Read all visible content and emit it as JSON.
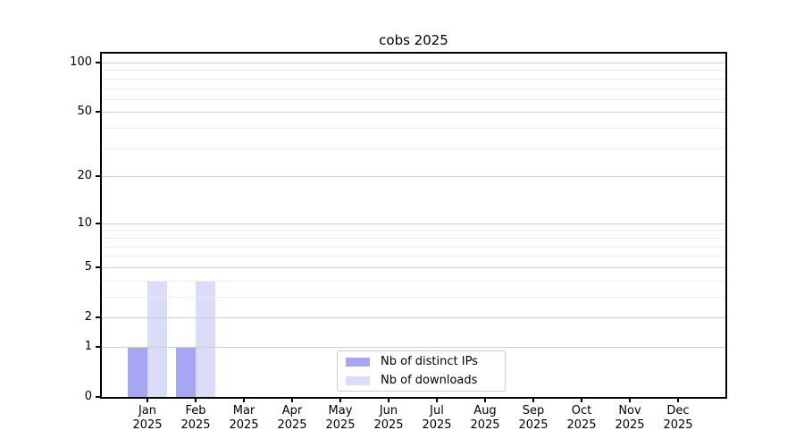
{
  "title": "cobs 2025",
  "chart_data": {
    "type": "bar",
    "title": "cobs 2025",
    "categories": [
      "Jan",
      "Feb",
      "Mar",
      "Apr",
      "May",
      "Jun",
      "Jul",
      "Aug",
      "Sep",
      "Oct",
      "Nov",
      "Dec"
    ],
    "category_year_line": "2025",
    "series": [
      {
        "name": "Nb of distinct IPs",
        "color": "#a6a6f5",
        "values": [
          1,
          1,
          0,
          0,
          0,
          0,
          0,
          0,
          0,
          0,
          0,
          0
        ]
      },
      {
        "name": "Nb of downloads",
        "color": "#dbdbfa",
        "values": [
          4,
          4,
          0,
          0,
          0,
          0,
          0,
          0,
          0,
          0,
          0,
          0
        ]
      }
    ],
    "y_axis": {
      "scale": "log10(1+value)",
      "major_ticks": [
        0,
        1,
        2,
        5,
        10,
        20,
        50,
        100
      ],
      "minor_gridlines": [
        3,
        4,
        6,
        7,
        8,
        9,
        30,
        40,
        60,
        70,
        80,
        90
      ],
      "ylim": [
        0,
        114
      ]
    },
    "xlabel": "",
    "ylabel": "",
    "grid": true,
    "legend_position": "lower center"
  },
  "legend": {
    "items": [
      {
        "label": "Nb of distinct IPs",
        "color": "#a6a6f5"
      },
      {
        "label": "Nb of downloads",
        "color": "#dbdbfa"
      }
    ]
  }
}
